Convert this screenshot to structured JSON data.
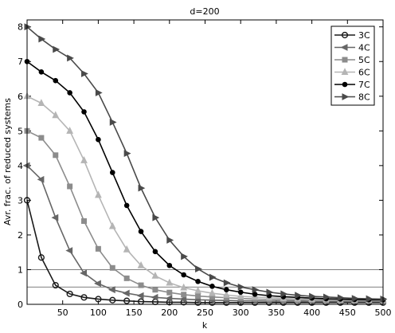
{
  "chart_data": {
    "type": "line",
    "title": "d=200",
    "xlabel": "k",
    "ylabel": "Avr. frac. of reduced systems",
    "xlim": [
      0,
      500
    ],
    "ylim": [
      0,
      8.2
    ],
    "xticks": [
      50,
      100,
      150,
      200,
      250,
      300,
      350,
      400,
      450,
      500
    ],
    "yticks": [
      0,
      1,
      2,
      3,
      4,
      5,
      6,
      7,
      8
    ],
    "grid": false,
    "legend_position": "top-right",
    "reference_lines_y": [
      0.5,
      1.0
    ],
    "x": [
      0,
      20,
      40,
      60,
      80,
      100,
      120,
      140,
      160,
      180,
      200,
      220,
      240,
      260,
      280,
      300,
      320,
      340,
      360,
      380,
      400,
      420,
      440,
      460,
      480,
      500
    ],
    "series": [
      {
        "name": "3C",
        "color": "#1a1a1a",
        "marker": "circle-open",
        "values": [
          3.0,
          1.35,
          0.55,
          0.3,
          0.2,
          0.15,
          0.12,
          0.1,
          0.08,
          0.07,
          0.06,
          0.06,
          0.05,
          0.05,
          0.05,
          0.05,
          0.05,
          0.05,
          0.05,
          0.05,
          0.05,
          0.05,
          0.05,
          0.05,
          0.05,
          0.05
        ]
      },
      {
        "name": "4C",
        "color": "#666666",
        "marker": "triangle-left",
        "values": [
          4.0,
          3.6,
          2.5,
          1.55,
          0.9,
          0.6,
          0.42,
          0.32,
          0.25,
          0.2,
          0.17,
          0.15,
          0.13,
          0.12,
          0.11,
          0.1,
          0.1,
          0.09,
          0.09,
          0.09,
          0.08,
          0.08,
          0.08,
          0.08,
          0.08,
          0.08
        ]
      },
      {
        "name": "5C",
        "color": "#8c8c8c",
        "marker": "square",
        "values": [
          5.0,
          4.8,
          4.3,
          3.4,
          2.4,
          1.6,
          1.05,
          0.75,
          0.55,
          0.42,
          0.34,
          0.28,
          0.24,
          0.21,
          0.19,
          0.17,
          0.15,
          0.14,
          0.13,
          0.12,
          0.12,
          0.11,
          0.11,
          0.1,
          0.1,
          0.1
        ]
      },
      {
        "name": "6C",
        "color": "#b5b5b5",
        "marker": "triangle-up",
        "values": [
          6.0,
          5.8,
          5.45,
          5.0,
          4.15,
          3.15,
          2.25,
          1.58,
          1.12,
          0.82,
          0.62,
          0.48,
          0.39,
          0.32,
          0.27,
          0.23,
          0.21,
          0.19,
          0.17,
          0.16,
          0.15,
          0.14,
          0.13,
          0.13,
          0.12,
          0.12
        ]
      },
      {
        "name": "7C",
        "color": "#000000",
        "marker": "dot",
        "values": [
          7.0,
          6.7,
          6.45,
          6.1,
          5.55,
          4.75,
          3.8,
          2.85,
          2.1,
          1.52,
          1.12,
          0.85,
          0.66,
          0.52,
          0.42,
          0.35,
          0.29,
          0.25,
          0.22,
          0.2,
          0.18,
          0.16,
          0.15,
          0.14,
          0.13,
          0.13
        ]
      },
      {
        "name": "8C",
        "color": "#4a4a4a",
        "marker": "triangle-right",
        "values": [
          8.0,
          7.65,
          7.35,
          7.1,
          6.65,
          6.1,
          5.25,
          4.35,
          3.35,
          2.5,
          1.85,
          1.38,
          1.02,
          0.78,
          0.62,
          0.5,
          0.42,
          0.35,
          0.3,
          0.26,
          0.23,
          0.21,
          0.19,
          0.17,
          0.16,
          0.15
        ]
      }
    ]
  }
}
